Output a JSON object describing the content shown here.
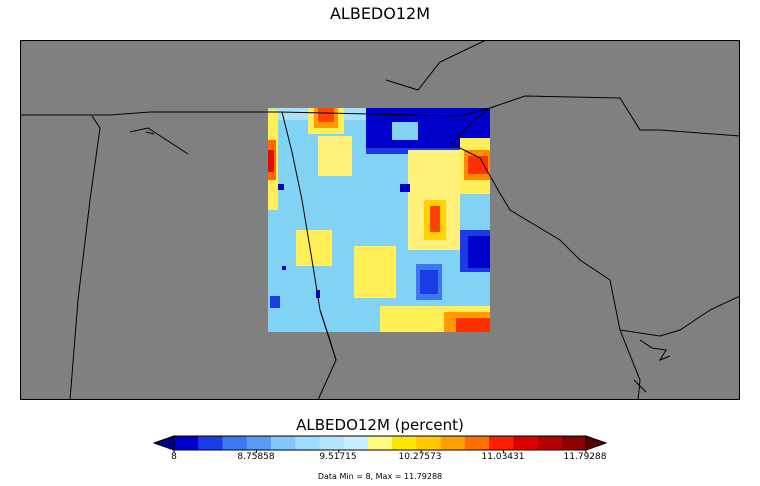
{
  "title": "ALBEDO12M",
  "colorbar": {
    "label": "ALBEDO12M (percent)",
    "ticks": [
      "8",
      "8.75858",
      "9.51715",
      "10.27573",
      "11.03431",
      "11.79288"
    ],
    "colors": [
      "#0000cd",
      "#1a3ce6",
      "#3c78f0",
      "#5a9cf5",
      "#82c8fa",
      "#a0dcff",
      "#b4e6ff",
      "#c8f0ff",
      "#fffa82",
      "#ffe600",
      "#ffc800",
      "#ffa000",
      "#ff6e00",
      "#ff1e00",
      "#dc0000",
      "#b40000",
      "#8c0000"
    ],
    "under_color": "#000080",
    "over_color": "#5a0000"
  },
  "stats": "Data Min = 8, Max = 11.79288",
  "map": {
    "background_color": "#808080",
    "data_min": 8,
    "data_max": 11.79288
  }
}
